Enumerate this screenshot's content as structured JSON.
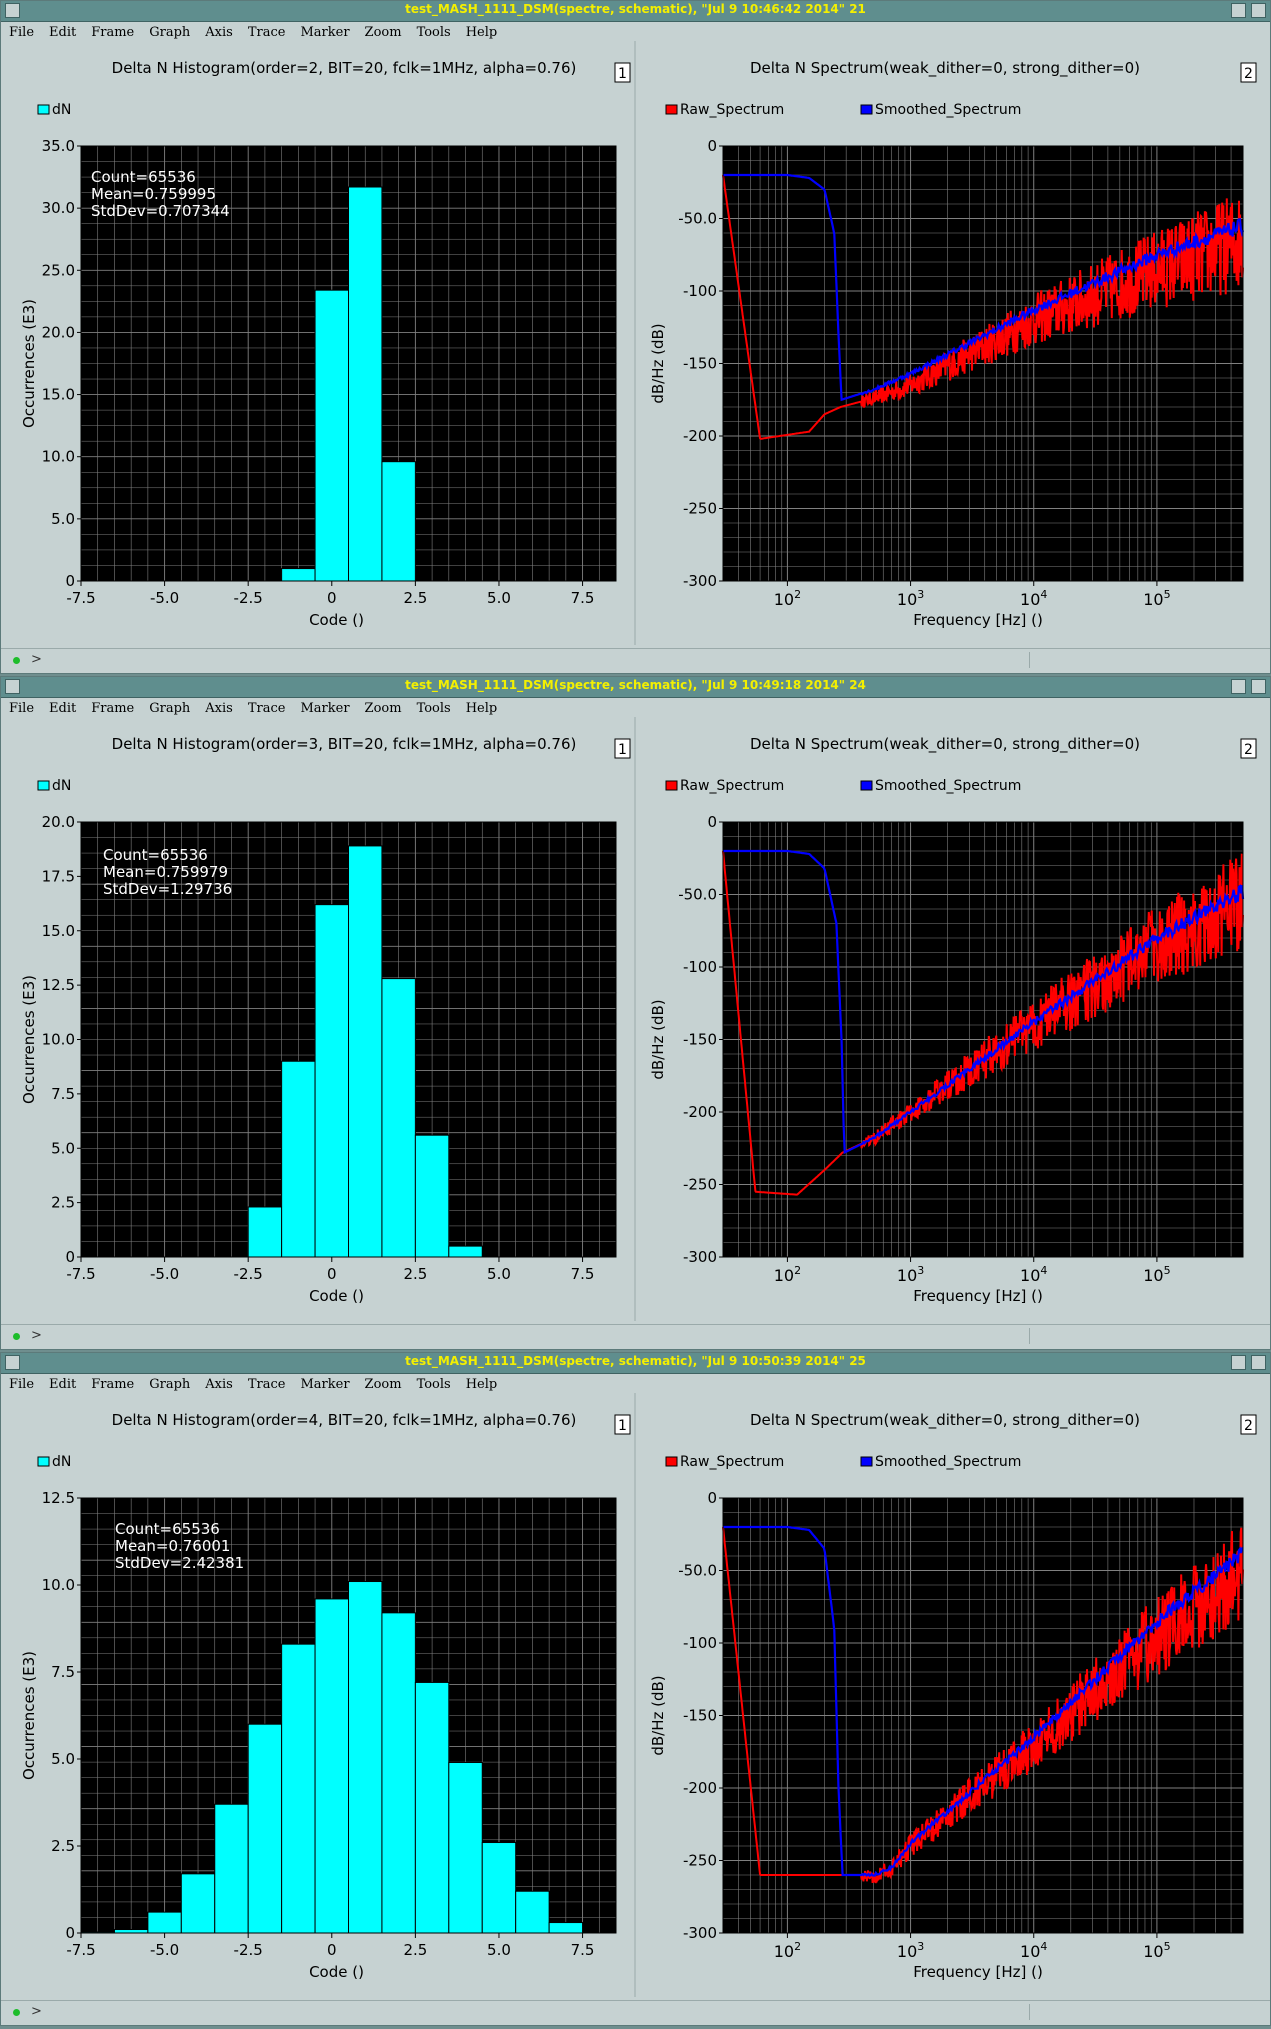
{
  "menu": [
    "File",
    "Edit",
    "Frame",
    "Graph",
    "Axis",
    "Trace",
    "Marker",
    "Zoom",
    "Tools",
    "Help"
  ],
  "status_prompt": ">",
  "colors": {
    "bar": "#00ffff",
    "raw": "#ff0000",
    "smoothed": "#0000ff",
    "plot_bg": "#000000",
    "grid": "#808080",
    "title_text": "#f4f000"
  },
  "windows": [
    {
      "title": "test_MASH_1111_DSM(spectre, schematic), \"Jul  9 10:46:42 2014\" 21",
      "histogram": {
        "title": "Delta N Histogram(order=2, BIT=20, fclk=1MHz, alpha=0.76)",
        "panel_number": "1",
        "legend": "dN",
        "stats": [
          "Count=65536",
          "Mean=0.759995",
          "StdDev=0.707344"
        ],
        "xlabel": "Code ()",
        "ylabel": "Occurrences (E3)",
        "y_ticks": [
          "0",
          "5.0",
          "10.0",
          "15.0",
          "20.0",
          "25.0",
          "30.0",
          "35.0"
        ],
        "x_ticks": [
          "-7.5",
          "-5.0",
          "-2.5",
          "0",
          "2.5",
          "5.0",
          "7.5"
        ]
      },
      "spectrum": {
        "title": "Delta N Spectrum(weak_dither=0, strong_dither=0)",
        "panel_number": "2",
        "legend": [
          "Raw_Spectrum",
          "Smoothed_Spectrum"
        ],
        "xlabel": "Frequency [Hz] ()",
        "ylabel": "dB/Hz (dB)",
        "y_ticks": [
          "0",
          "-50.0",
          "-100",
          "-150",
          "-200",
          "-250",
          "-300"
        ]
      }
    },
    {
      "title": "test_MASH_1111_DSM(spectre, schematic), \"Jul  9 10:49:18 2014\" 24",
      "histogram": {
        "title": "Delta N Histogram(order=3, BIT=20, fclk=1MHz, alpha=0.76)",
        "panel_number": "1",
        "legend": "dN",
        "stats": [
          "Count=65536",
          "Mean=0.759979",
          "StdDev=1.29736"
        ],
        "xlabel": "Code ()",
        "ylabel": "Occurrences (E3)",
        "y_ticks": [
          "0",
          "2.5",
          "5.0",
          "7.5",
          "10.0",
          "12.5",
          "15.0",
          "17.5",
          "20.0"
        ],
        "x_ticks": [
          "-7.5",
          "-5.0",
          "-2.5",
          "0",
          "2.5",
          "5.0",
          "7.5"
        ]
      },
      "spectrum": {
        "title": "Delta N Spectrum(weak_dither=0, strong_dither=0)",
        "panel_number": "2",
        "legend": [
          "Raw_Spectrum",
          "Smoothed_Spectrum"
        ],
        "xlabel": "Frequency [Hz] ()",
        "ylabel": "dB/Hz (dB)",
        "y_ticks": [
          "0",
          "-50.0",
          "-100",
          "-150",
          "-200",
          "-250",
          "-300"
        ]
      }
    },
    {
      "title": "test_MASH_1111_DSM(spectre, schematic), \"Jul  9 10:50:39 2014\" 25",
      "histogram": {
        "title": "Delta N Histogram(order=4, BIT=20, fclk=1MHz, alpha=0.76)",
        "panel_number": "1",
        "legend": "dN",
        "stats": [
          "Count=65536",
          "Mean=0.76001",
          "StdDev=2.42381"
        ],
        "xlabel": "Code ()",
        "ylabel": "Occurrences (E3)",
        "y_ticks": [
          "0",
          "2.5",
          "5.0",
          "7.5",
          "10.0",
          "12.5"
        ],
        "x_ticks": [
          "-7.5",
          "-5.0",
          "-2.5",
          "0",
          "2.5",
          "5.0",
          "7.5"
        ]
      },
      "spectrum": {
        "title": "Delta N Spectrum(weak_dither=0, strong_dither=0)",
        "panel_number": "2",
        "legend": [
          "Raw_Spectrum",
          "Smoothed_Spectrum"
        ],
        "xlabel": "Frequency [Hz] ()",
        "ylabel": "dB/Hz (dB)",
        "y_ticks": [
          "0",
          "-50.0",
          "-100",
          "-150",
          "-200",
          "-250",
          "-300"
        ]
      }
    }
  ],
  "chart_data": [
    {
      "type": "bar",
      "title": "Delta N Histogram(order=2, BIT=20, fclk=1MHz, alpha=0.76)",
      "xlabel": "Code ()",
      "ylabel": "Occurrences (E3)",
      "xlim": [
        -7.5,
        8.5
      ],
      "ylim": [
        0,
        35
      ],
      "bin_width": 1,
      "bins": [
        -1,
        0,
        1,
        2
      ],
      "values": [
        1.0,
        23.4,
        31.7,
        9.6
      ]
    },
    {
      "type": "line",
      "title": "Delta N Spectrum(weak_dither=0, strong_dither=0)",
      "xlabel": "Frequency [Hz] ()",
      "ylabel": "dB/Hz (dB)",
      "x_scale": "log",
      "xlim": [
        30,
        500000
      ],
      "ylim": [
        -300,
        0
      ],
      "x_tick_exponents": [
        2,
        3,
        4,
        5
      ],
      "series": [
        {
          "name": "Raw_Spectrum",
          "x": [
            30,
            60,
            150,
            200,
            270,
            500,
            1000,
            10000,
            100000,
            500000
          ],
          "y": [
            -20,
            -202,
            -197,
            -185,
            -180,
            -174,
            -165,
            -120,
            -85,
            -65
          ]
        },
        {
          "name": "Smoothed_Spectrum",
          "x": [
            30,
            100,
            150,
            200,
            240,
            260,
            275,
            500,
            1000,
            10000,
            100000,
            500000
          ],
          "y": [
            -20,
            -20,
            -22,
            -30,
            -60,
            -130,
            -175,
            -168,
            -157,
            -113,
            -75,
            -55
          ]
        }
      ]
    },
    {
      "type": "bar",
      "title": "Delta N Histogram(order=3, BIT=20, fclk=1MHz, alpha=0.76)",
      "xlabel": "Code ()",
      "ylabel": "Occurrences (E3)",
      "xlim": [
        -7.5,
        8.5
      ],
      "ylim": [
        0,
        20
      ],
      "bin_width": 1,
      "bins": [
        -2,
        -1,
        0,
        1,
        2,
        3,
        4
      ],
      "values": [
        2.3,
        9.0,
        16.2,
        18.9,
        12.8,
        5.6,
        0.5
      ]
    },
    {
      "type": "line",
      "title": "Delta N Spectrum(weak_dither=0, strong_dither=0)",
      "xlabel": "Frequency [Hz] ()",
      "ylabel": "dB/Hz (dB)",
      "x_scale": "log",
      "xlim": [
        30,
        500000
      ],
      "ylim": [
        -300,
        0
      ],
      "x_tick_exponents": [
        2,
        3,
        4,
        5
      ],
      "series": [
        {
          "name": "Raw_Spectrum",
          "x": [
            30,
            55,
            120,
            200,
            280,
            500,
            1000,
            10000,
            100000,
            500000
          ],
          "y": [
            -20,
            -255,
            -257,
            -240,
            -228,
            -218,
            -200,
            -140,
            -85,
            -55
          ]
        },
        {
          "name": "Smoothed_Spectrum",
          "x": [
            30,
            100,
            150,
            200,
            250,
            275,
            290,
            500,
            1000,
            10000,
            100000,
            500000
          ],
          "y": [
            -20,
            -20,
            -22,
            -32,
            -70,
            -150,
            -228,
            -218,
            -200,
            -138,
            -80,
            -48
          ]
        }
      ]
    },
    {
      "type": "bar",
      "title": "Delta N Histogram(order=4, BIT=20, fclk=1MHz, alpha=0.76)",
      "xlabel": "Code ()",
      "ylabel": "Occurrences (E3)",
      "xlim": [
        -7.5,
        8.5
      ],
      "ylim": [
        0,
        12.5
      ],
      "bin_width": 1,
      "bins": [
        -7,
        -6,
        -5,
        -4,
        -3,
        -2,
        -1,
        0,
        1,
        2,
        3,
        4,
        5,
        6,
        7
      ],
      "values": [
        0.03,
        0.1,
        0.6,
        1.7,
        3.7,
        6.0,
        8.3,
        9.6,
        10.1,
        9.2,
        7.2,
        4.9,
        2.6,
        1.2,
        0.3
      ]
    },
    {
      "type": "line",
      "title": "Delta N Spectrum(weak_dither=0, strong_dither=0)",
      "xlabel": "Frequency [Hz] ()",
      "ylabel": "dB/Hz (dB)",
      "x_scale": "log",
      "xlim": [
        30,
        500000
      ],
      "ylim": [
        -300,
        0
      ],
      "x_tick_exponents": [
        2,
        3,
        4,
        5
      ],
      "series": [
        {
          "name": "Raw_Spectrum",
          "x": [
            30,
            60,
            200,
            400,
            500,
            700,
            1000,
            10000,
            100000,
            500000
          ],
          "y": [
            -20,
            -260,
            -260,
            -260,
            -262,
            -255,
            -240,
            -170,
            -95,
            -50
          ]
        },
        {
          "name": "Smoothed_Spectrum",
          "x": [
            30,
            100,
            150,
            200,
            240,
            260,
            280,
            500,
            700,
            1000,
            10000,
            100000,
            500000
          ],
          "y": [
            -20,
            -20,
            -22,
            -35,
            -90,
            -200,
            -260,
            -260,
            -255,
            -238,
            -165,
            -85,
            -38
          ]
        }
      ]
    }
  ]
}
